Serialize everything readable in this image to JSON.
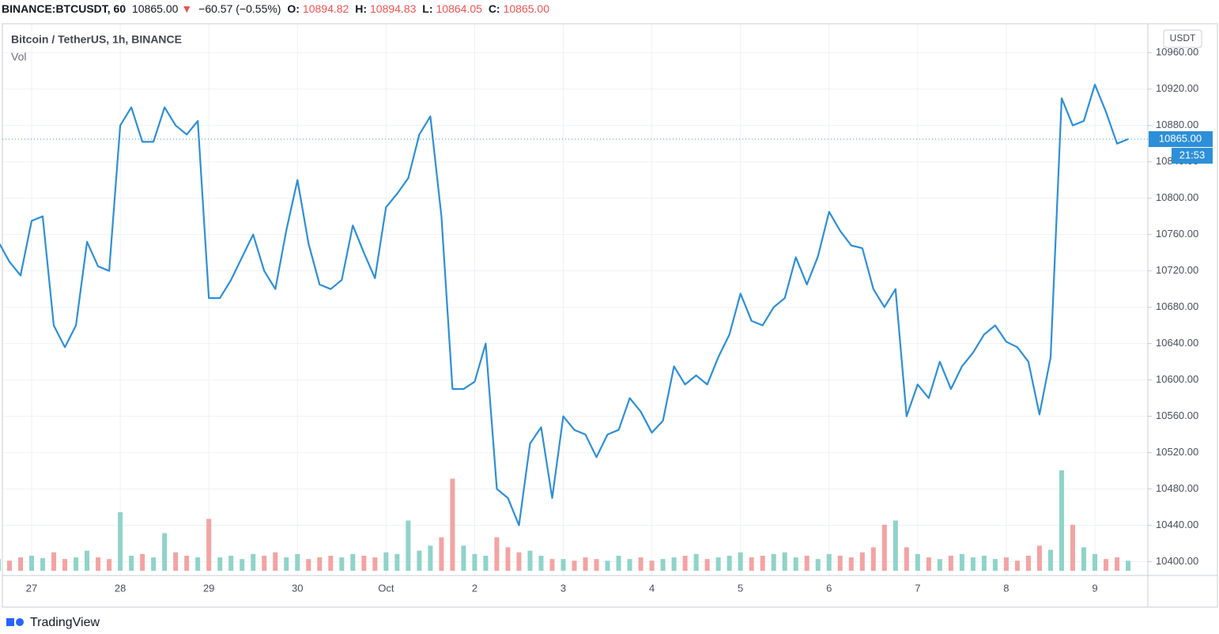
{
  "header": {
    "symbol": "BINANCE:BTCUSDT, 60",
    "price": "10865.00",
    "arrow": "▼",
    "change": "−60.57 (−0.55%)",
    "ohlc": [
      {
        "key": "O:",
        "value": "10894.82"
      },
      {
        "key": "H:",
        "value": "10894.83"
      },
      {
        "key": "L:",
        "value": "10864.05"
      },
      {
        "key": "C:",
        "value": "10865.00"
      }
    ]
  },
  "chart_data": {
    "type": "line",
    "title": "Bitcoin / TetherUS, 1h, BINANCE",
    "currency": "USDT",
    "last_price_label": "10865.00",
    "countdown": "21:53",
    "color": "#2d8fd8",
    "grid": true,
    "categories": [
      null,
      null,
      null,
      "27",
      null,
      null,
      null,
      null,
      null,
      null,
      null,
      "28",
      null,
      null,
      null,
      null,
      null,
      null,
      null,
      "29",
      null,
      null,
      null,
      null,
      null,
      null,
      null,
      "30",
      null,
      null,
      null,
      null,
      null,
      null,
      null,
      "Oct",
      null,
      null,
      null,
      null,
      null,
      null,
      null,
      "2",
      null,
      null,
      null,
      null,
      null,
      null,
      null,
      "3",
      null,
      null,
      null,
      null,
      null,
      null,
      null,
      "4",
      null,
      null,
      null,
      null,
      null,
      null,
      null,
      "5",
      null,
      null,
      null,
      null,
      null,
      null,
      null,
      "6",
      null,
      null,
      null,
      null,
      null,
      null,
      null,
      "7",
      null,
      null,
      null,
      null,
      null,
      null,
      null,
      "8",
      null,
      null,
      null,
      null,
      null,
      null,
      null,
      "9",
      null,
      null,
      null
    ],
    "values": [
      10752,
      10730,
      10715,
      10775,
      10780,
      10660,
      10636,
      10660,
      10752,
      10725,
      10720,
      10880,
      10900,
      10862,
      10862,
      10900,
      10880,
      10870,
      10885,
      10690,
      10690,
      10710,
      10735,
      10760,
      10720,
      10700,
      10765,
      10820,
      10750,
      10705,
      10700,
      10710,
      10770,
      10740,
      10712,
      10790,
      10805,
      10822,
      10870,
      10890,
      10780,
      10590,
      10590,
      10598,
      10640,
      10480,
      10470,
      10440,
      10530,
      10548,
      10470,
      10560,
      10545,
      10540,
      10515,
      10540,
      10545,
      10580,
      10565,
      10542,
      10555,
      10615,
      10595,
      10605,
      10595,
      10625,
      10650,
      10695,
      10665,
      10660,
      10680,
      10690,
      10735,
      10705,
      10736,
      10785,
      10764,
      10748,
      10745,
      10700,
      10680,
      10700,
      10560,
      10595,
      10580,
      10620,
      10590,
      10615,
      10630,
      10650,
      10660,
      10642,
      10636,
      10620,
      10562,
      10625,
      10910,
      10880,
      10885,
      10925,
      10895,
      10860,
      10865
    ],
    "volume": {
      "name": "Vol",
      "up_color": "#8fd3c9",
      "down_color": "#f3a3a3",
      "values": [
        14,
        12,
        16,
        18,
        15,
        22,
        14,
        16,
        24,
        16,
        14,
        70,
        18,
        20,
        16,
        45,
        22,
        18,
        16,
        62,
        16,
        18,
        14,
        20,
        18,
        22,
        16,
        20,
        14,
        16,
        18,
        16,
        20,
        18,
        16,
        22,
        20,
        60,
        24,
        30,
        40,
        110,
        30,
        20,
        18,
        40,
        28,
        22,
        24,
        18,
        14,
        14,
        12,
        16,
        14,
        12,
        18,
        14,
        16,
        12,
        14,
        16,
        18,
        20,
        14,
        16,
        18,
        22,
        16,
        18,
        20,
        22,
        16,
        18,
        14,
        20,
        18,
        16,
        22,
        28,
        55,
        60,
        28,
        20,
        16,
        14,
        18,
        20,
        16,
        18,
        14,
        16,
        12,
        18,
        30,
        25,
        120,
        55,
        28,
        20,
        14,
        16,
        12
      ]
    },
    "ylim": [
      10390,
      10992
    ],
    "yticks": [
      {
        "value": 10400,
        "label": "10400.00"
      },
      {
        "value": 10440,
        "label": "10440.00"
      },
      {
        "value": 10480,
        "label": "10480.00"
      },
      {
        "value": 10520,
        "label": "10520.00"
      },
      {
        "value": 10560,
        "label": "10560.00"
      },
      {
        "value": 10600,
        "label": "10600.00"
      },
      {
        "value": 10640,
        "label": "10640.00"
      },
      {
        "value": 10680,
        "label": "10680.00"
      },
      {
        "value": 10720,
        "label": "10720.00"
      },
      {
        "value": 10760,
        "label": "10760.00"
      },
      {
        "value": 10800,
        "label": "10800.00"
      },
      {
        "value": 10840,
        "label": "10840.00"
      },
      {
        "value": 10880,
        "label": "10880.00"
      },
      {
        "value": 10920,
        "label": "10920.00"
      },
      {
        "value": 10960,
        "label": "10960.00"
      }
    ]
  },
  "footer": {
    "brand": "TradingView"
  }
}
